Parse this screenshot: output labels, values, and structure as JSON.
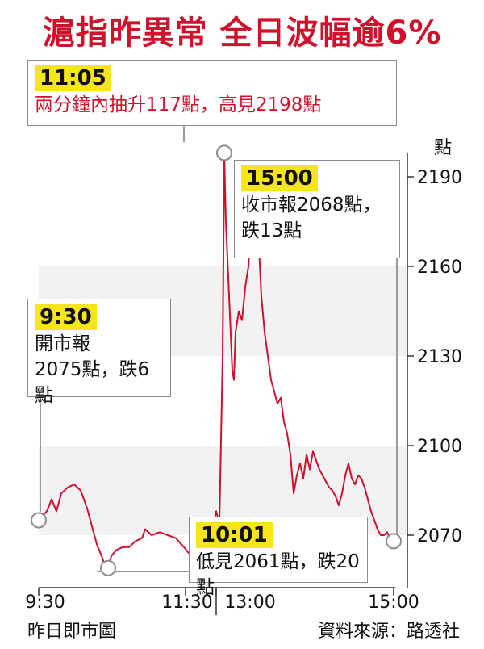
{
  "header": {
    "title": "滬指昨異常 全日波幅逾6%"
  },
  "chart_data": {
    "type": "line",
    "unit_label": "點",
    "yticks": [
      2070,
      2100,
      2130,
      2160,
      2190
    ],
    "ylim": [
      2056,
      2200
    ],
    "xticks": [
      "9:30",
      "11:30",
      "13:00",
      "15:00"
    ],
    "line_color": "#d0112b",
    "series": [
      {
        "values": [
          [
            0,
            2075
          ],
          [
            5,
            2078
          ],
          [
            8,
            2082
          ],
          [
            11,
            2078
          ],
          [
            14,
            2084
          ],
          [
            18,
            2086
          ],
          [
            22,
            2087
          ],
          [
            26,
            2085
          ],
          [
            30,
            2079
          ],
          [
            33,
            2073
          ],
          [
            36,
            2067
          ],
          [
            39,
            2063
          ],
          [
            41,
            2060
          ],
          [
            43,
            2059
          ],
          [
            45,
            2063
          ],
          [
            48,
            2065
          ],
          [
            52,
            2066
          ],
          [
            56,
            2066
          ],
          [
            60,
            2068
          ],
          [
            64,
            2069
          ],
          [
            66,
            2072
          ],
          [
            70,
            2070
          ],
          [
            75,
            2071
          ],
          [
            80,
            2070
          ],
          [
            85,
            2069
          ],
          [
            90,
            2066
          ],
          [
            93,
            2064
          ],
          [
            96,
            2064
          ],
          [
            100,
            2064
          ],
          [
            103,
            2065
          ],
          [
            106,
            2066
          ],
          [
            108,
            2073
          ],
          [
            110,
            2078
          ],
          [
            112,
            2074
          ],
          [
            114,
            2130
          ],
          [
            115,
            2198
          ],
          [
            116,
            2175
          ],
          [
            118,
            2150
          ],
          [
            120,
            2125
          ],
          [
            121,
            2122
          ],
          [
            122,
            2138
          ],
          [
            124,
            2145
          ],
          [
            126,
            2142
          ],
          [
            128,
            2153
          ],
          [
            130,
            2160
          ],
          [
            132,
            2178
          ],
          [
            134,
            2186
          ],
          [
            136,
            2172
          ],
          [
            138,
            2150
          ],
          [
            140,
            2138
          ],
          [
            142,
            2130
          ],
          [
            144,
            2122
          ],
          [
            146,
            2118
          ],
          [
            148,
            2114
          ],
          [
            150,
            2116
          ],
          [
            152,
            2108
          ],
          [
            154,
            2104
          ],
          [
            156,
            2097
          ],
          [
            158,
            2084
          ],
          [
            160,
            2090
          ],
          [
            162,
            2094
          ],
          [
            164,
            2089
          ],
          [
            166,
            2097
          ],
          [
            168,
            2092
          ],
          [
            170,
            2098
          ],
          [
            172,
            2095
          ],
          [
            174,
            2092
          ],
          [
            176,
            2090
          ],
          [
            178,
            2088
          ],
          [
            180,
            2086
          ],
          [
            182,
            2085
          ],
          [
            184,
            2083
          ],
          [
            186,
            2080
          ],
          [
            188,
            2084
          ],
          [
            190,
            2090
          ],
          [
            192,
            2094
          ],
          [
            194,
            2089
          ],
          [
            196,
            2087
          ],
          [
            198,
            2090
          ],
          [
            200,
            2089
          ],
          [
            202,
            2086
          ],
          [
            204,
            2082
          ],
          [
            206,
            2078
          ],
          [
            208,
            2075
          ],
          [
            210,
            2072
          ],
          [
            212,
            2070
          ],
          [
            214,
            2070
          ],
          [
            216,
            2071
          ],
          [
            218,
            2068
          ],
          [
            220,
            2068
          ]
        ]
      }
    ],
    "annotations": [
      {
        "id": "1105",
        "time": "11:05",
        "text": "兩分鐘內抽升117點，高見2198點"
      },
      {
        "id": "1500",
        "time": "15:00",
        "text": "收市報2068點，\n跌13點"
      },
      {
        "id": "0930",
        "time": "9:30",
        "text": "開市報\n2075點，跌6點"
      },
      {
        "id": "1001",
        "time": "10:01",
        "text": "低見2061點，跌20點"
      }
    ]
  },
  "footer": {
    "left": "昨日即市圖",
    "right": "資料來源：路透社"
  }
}
